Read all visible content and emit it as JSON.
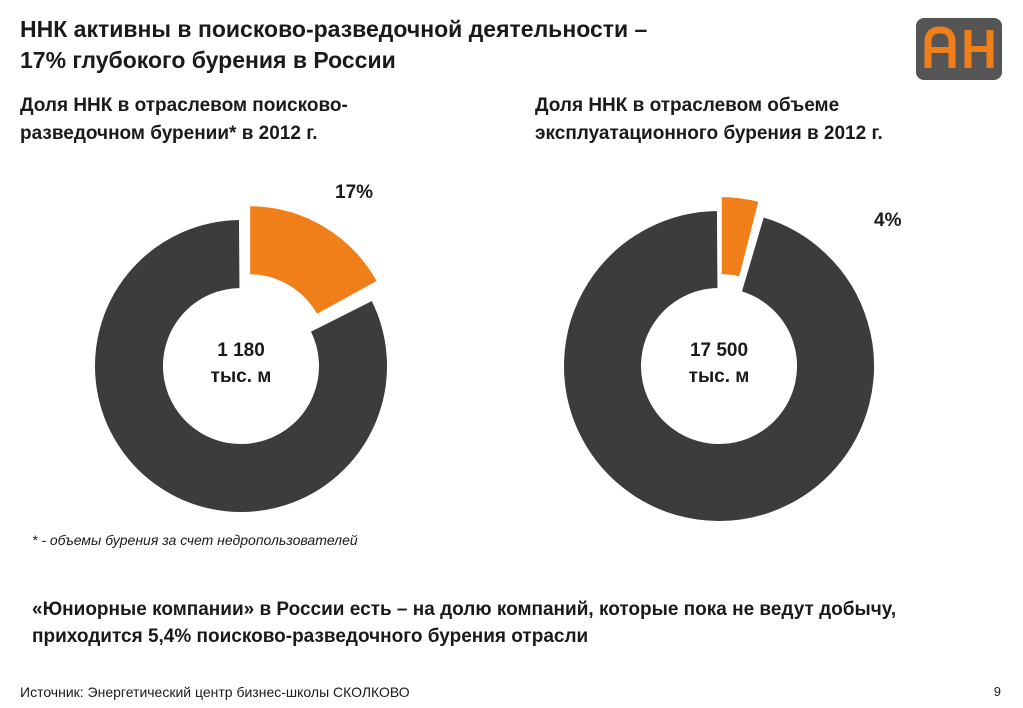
{
  "header": {
    "title_line1": "ННК активны в поисково-разведочной деятельности –",
    "title_line2": "17% глубокого бурения в России"
  },
  "logo": {
    "text": "АН",
    "bg_color": "#555555",
    "fg_color": "#f07f1a"
  },
  "colors": {
    "accent": "#f07f1a",
    "dark": "#3c3c3c"
  },
  "chart_data": [
    {
      "type": "pie",
      "title_line1": "Доля ННК в отраслевом поисково-",
      "title_line2": "разведочном бурении* в 2012 г.",
      "slices": [
        {
          "value": 17,
          "label": "17%",
          "color": "#f07f1a"
        },
        {
          "value": 83,
          "label": "",
          "color": "#3c3c3c"
        }
      ],
      "center_value": "1 180",
      "center_unit": "тыс. м"
    },
    {
      "type": "pie",
      "title_line1": "Доля ННК в отраслевом объеме",
      "title_line2": "эксплуатационного бурения в 2012 г.",
      "slices": [
        {
          "value": 4,
          "label": "4%",
          "color": "#f07f1a"
        },
        {
          "value": 96,
          "label": "",
          "color": "#3c3c3c"
        }
      ],
      "center_value": "17 500",
      "center_unit": "тыс. м"
    }
  ],
  "footnote": "* - объемы бурения за счет недропользователей",
  "conclusion": {
    "line1": "«Юниорные компании» в России есть – на долю компаний, которые пока не ведут добычу,",
    "line2": "приходится 5,4% поисково-разведочного бурения отрасли"
  },
  "source": "Источник: Энергетический центр бизнес-школы СКОЛКОВО",
  "page_number": "9"
}
